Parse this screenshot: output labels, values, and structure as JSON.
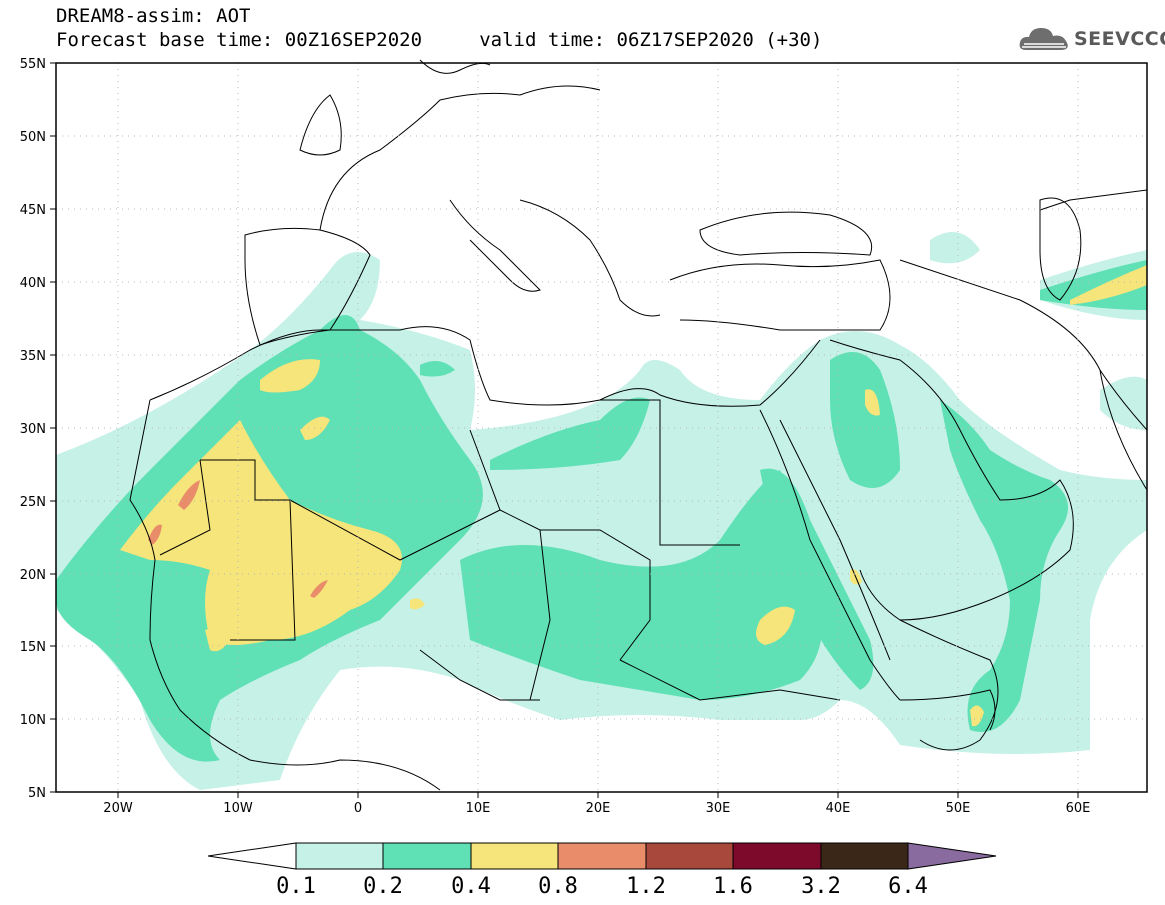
{
  "header": {
    "line1": "DREAM8-assim: AOT",
    "line2": "Forecast base time: 00Z16SEP2020     valid time: 06Z17SEP2020 (+30)"
  },
  "logo": {
    "text": "SEEVCCC",
    "icon": "cloud-logo-icon"
  },
  "map": {
    "lon_range": [
      -25,
      65
    ],
    "lat_range": [
      5,
      55
    ],
    "lon_ticks": [
      "20W",
      "10W",
      "0",
      "10E",
      "20E",
      "30E",
      "40E",
      "50E",
      "60E"
    ],
    "lat_ticks": [
      "55N",
      "50N",
      "45N",
      "40N",
      "35N",
      "30N",
      "25N",
      "20N",
      "15N",
      "10N",
      "5N"
    ],
    "grid": "dotted"
  },
  "colorbar": {
    "labels": [
      "0.1",
      "0.2",
      "0.4",
      "0.8",
      "1.2",
      "1.6",
      "3.2",
      "6.4"
    ],
    "colors": [
      "#ffffff",
      "#c5f1e6",
      "#5fe0b5",
      "#f5e57a",
      "#e88c6a",
      "#a8483d",
      "#7e0a2b",
      "#3b2717",
      "#8a6ba0"
    ]
  }
}
